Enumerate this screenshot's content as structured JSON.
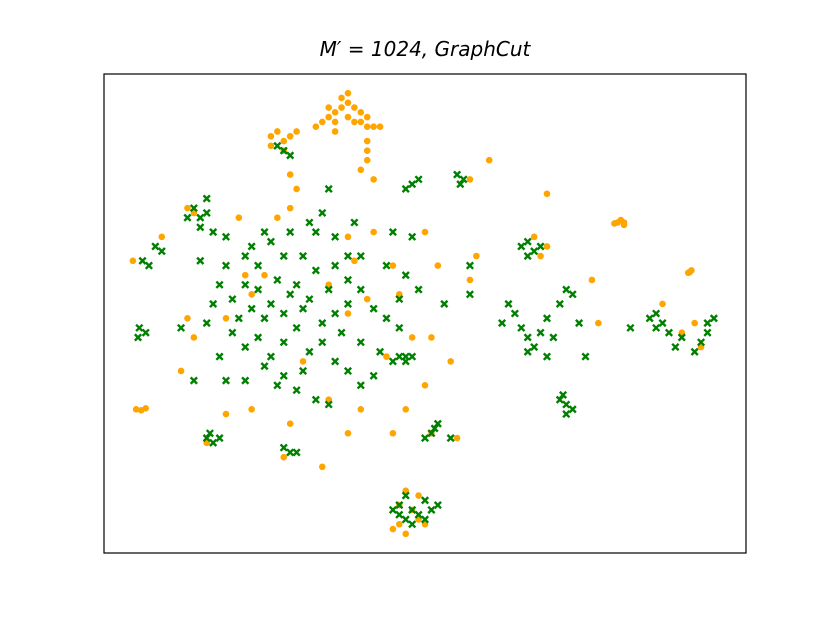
{
  "chart_data": {
    "type": "scatter",
    "title": "M′ = 1024, GraphCut",
    "xlim": [
      0,
      100
    ],
    "ylim": [
      0,
      100
    ],
    "series": [
      {
        "color": "#ffa500",
        "marker": "o",
        "x": [
          34,
          35,
          36,
          37,
          38,
          39,
          40,
          41,
          42,
          43,
          33,
          36,
          38,
          39,
          37,
          38,
          35,
          40,
          41,
          36,
          26,
          27,
          28,
          29,
          30,
          26,
          28,
          41,
          41,
          41,
          40,
          42,
          29,
          30,
          80,
          81,
          80.5,
          81,
          79.5,
          91,
          91.5,
          91.2,
          5,
          5.8,
          6.5,
          45,
          46,
          47,
          48,
          49,
          46,
          50,
          47,
          49,
          4.5,
          9,
          13,
          22,
          19,
          13,
          14,
          12,
          23,
          25,
          35,
          38,
          42,
          45,
          46,
          50,
          52,
          48,
          51,
          57,
          54,
          50,
          47,
          40,
          38,
          45,
          55,
          51,
          35,
          23,
          19,
          16,
          28,
          34,
          29,
          38,
          31,
          58,
          68,
          69,
          76,
          69,
          67,
          77,
          87,
          90,
          93,
          92,
          57,
          60,
          27,
          29,
          21,
          14,
          39,
          41,
          44
        ],
        "values": [
          90,
          91,
          92,
          93,
          94,
          93,
          92,
          91,
          89,
          89,
          89,
          90,
          91,
          90,
          95,
          96,
          93,
          90,
          89,
          88,
          87,
          88,
          86,
          87,
          88,
          85,
          84,
          86,
          84,
          82,
          80,
          78,
          79,
          76,
          69,
          68.5,
          69.5,
          69,
          68.8,
          58.5,
          59,
          58.6,
          30,
          29.8,
          30.2,
          5,
          6,
          4,
          9,
          7,
          10,
          6,
          13,
          12,
          61,
          66,
          72,
          58,
          49,
          49,
          45,
          38,
          54,
          58,
          56,
          66,
          67,
          60,
          54,
          67,
          60,
          45,
          45,
          57,
          40,
          35,
          30,
          30,
          25,
          25,
          24,
          25,
          32,
          30,
          29,
          23,
          20,
          18,
          27,
          50,
          40,
          62,
          62,
          64,
          57,
          75,
          66,
          48,
          52,
          46,
          43,
          48,
          78,
          82,
          70,
          72,
          70,
          71,
          61,
          53,
          41
        ]
      },
      {
        "color": "#008000",
        "marker": "x",
        "x": [
          20,
          21,
          22,
          23,
          24,
          25,
          26,
          27,
          28,
          29,
          30,
          31,
          32,
          20,
          22,
          24,
          26,
          28,
          30,
          32,
          34,
          36,
          38,
          35,
          33,
          31,
          28,
          26,
          24,
          22,
          36,
          38,
          40,
          42,
          44,
          46,
          47,
          44,
          40,
          36,
          33,
          29,
          25,
          34,
          36,
          38,
          28,
          25,
          22,
          19,
          30,
          33,
          35,
          40,
          42,
          43,
          46,
          47,
          45,
          40,
          18,
          17,
          16,
          19,
          23,
          37,
          31,
          27,
          15,
          14,
          16,
          15,
          13,
          17,
          16,
          19,
          8,
          7,
          9,
          6,
          5.5,
          6.5,
          5.3,
          16,
          17,
          16.5,
          18,
          46,
          47,
          48,
          49,
          50,
          51,
          48,
          46,
          45,
          52,
          50,
          47,
          65,
          66,
          67,
          68,
          66,
          62,
          64,
          65,
          66,
          67,
          68,
          66,
          63,
          69,
          71,
          72,
          73,
          70,
          69,
          74,
          75,
          71,
          72,
          73,
          72,
          71.5,
          85,
          86,
          87,
          86,
          88,
          82,
          90,
          94,
          95,
          94,
          93,
          89,
          92,
          55.5,
          55,
          56,
          48,
          49,
          47,
          28,
          29,
          27,
          51,
          51.5,
          52,
          50,
          54,
          28,
          29,
          30,
          47,
          46,
          48,
          35,
          34,
          32,
          39,
          38,
          48,
          45,
          57,
          53,
          49,
          57,
          14,
          18,
          12,
          15
        ],
        "values": [
          53,
          49,
          56,
          51,
          55,
          49,
          52,
          57,
          50,
          54,
          56,
          51,
          53,
          46,
          43,
          45,
          41,
          44,
          47,
          42,
          48,
          50,
          52,
          55,
          59,
          62,
          62,
          65,
          60,
          62,
          60,
          57,
          55,
          51,
          49,
          53,
          58,
          60,
          62,
          66,
          67,
          67,
          67,
          44,
          40,
          38,
          37,
          39,
          36,
          36,
          34,
          32,
          31,
          35,
          37,
          42,
          47,
          41,
          40,
          44,
          56,
          52,
          48,
          60,
          64,
          46,
          38,
          35,
          70,
          72,
          71,
          68,
          70,
          67,
          74,
          66,
          64,
          60,
          63,
          61,
          47,
          46,
          45,
          24,
          23,
          25,
          24,
          8,
          7,
          9,
          8,
          7,
          9,
          6,
          10,
          9,
          10,
          11,
          12,
          64,
          65,
          63,
          64,
          62,
          48,
          50,
          47,
          45,
          43,
          46,
          42,
          52,
          49,
          52,
          55,
          54,
          45,
          41,
          48,
          41,
          32,
          31,
          30,
          29,
          33,
          49,
          50,
          48,
          47,
          46,
          47,
          45,
          48,
          49,
          46,
          44,
          43,
          42,
          77,
          79,
          78,
          77,
          78,
          76,
          84,
          83,
          85,
          25,
          26,
          27,
          24,
          24,
          22,
          21,
          21,
          40,
          41,
          41,
          76,
          71,
          69,
          69,
          62,
          66,
          67,
          60,
          52,
          55,
          54,
          36,
          41,
          47,
          61
        ]
      }
    ]
  }
}
